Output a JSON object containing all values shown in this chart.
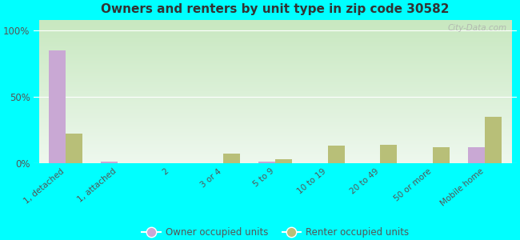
{
  "title": "Owners and renters by unit type in zip code 30582",
  "categories": [
    "1, detached",
    "1, attached",
    "2",
    "3 or 4",
    "5 to 9",
    "10 to 19",
    "20 to 49",
    "50 or more",
    "Mobile home"
  ],
  "owner_values": [
    85,
    1,
    0,
    0,
    1,
    0,
    0,
    0,
    12
  ],
  "renter_values": [
    22,
    0,
    0,
    7,
    3,
    13,
    14,
    12,
    35
  ],
  "owner_color": "#c9a8d4",
  "renter_color": "#b8bf78",
  "bg_top_color": "#c8e8c0",
  "bg_bottom_color": "#eef8ee",
  "outer_bg": "#00ffff",
  "yticks": [
    0,
    50,
    100
  ],
  "ytick_labels": [
    "0%",
    "50%",
    "100%"
  ],
  "ylim": [
    0,
    108
  ],
  "bar_width": 0.32,
  "legend_owner": "Owner occupied units",
  "legend_renter": "Renter occupied units",
  "watermark": "City-Data.com"
}
